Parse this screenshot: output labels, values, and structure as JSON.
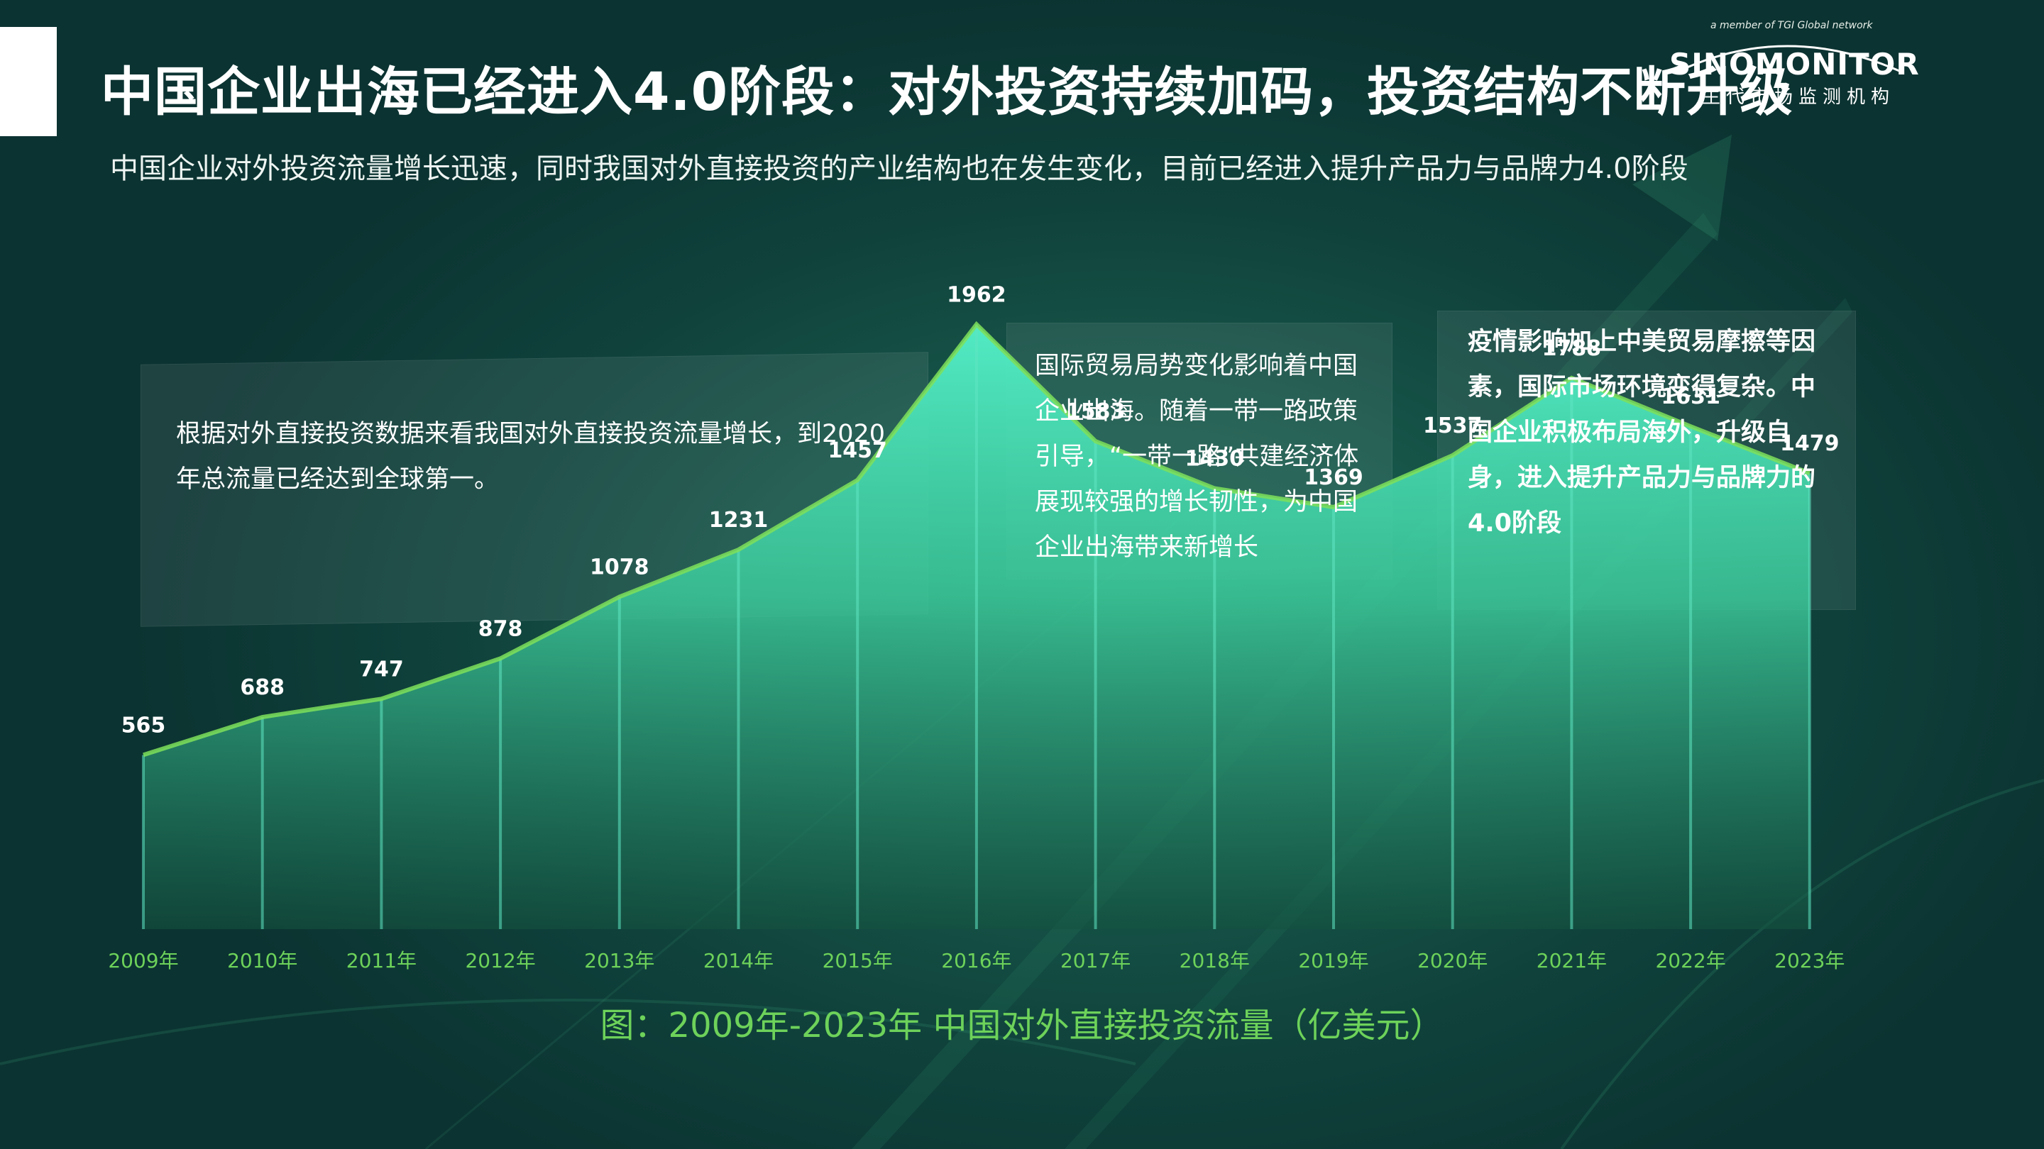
{
  "header": {
    "title": "中国企业出海已经进入4.0阶段：对外投资持续加码，投资结构不断升级",
    "subtitle": "中国企业对外投资流量增长迅速，同时我国对外直接投资的产业结构也在发生变化，目前已经进入提升产品力与品牌力4.0阶段"
  },
  "logo": {
    "tagline": "a member of TGI Global network",
    "wordmark": "SINOMONITOR",
    "chinese": "生代市场监测机构"
  },
  "annotations": [
    {
      "text": "根据对外直接投资数据来看我国对外直接投资流量增长，到2020年总流量已经达到全球第一。"
    },
    {
      "text": "国际贸易局势变化影响着中国企业出海。随着一带一路政策引导，“一带一路”共建经济体展现较强的增长韧性，为中国企业出海带来新增长"
    },
    {
      "text": "疫情影响加上中美贸易摩擦等因素，国际市场环境变得复杂。中国企业积极布局海外，升级自身，进入提升产品力与品牌力的4.0阶段"
    }
  ],
  "colors": {
    "area_top": "#4ee3c0",
    "area_bottom": "#0f4a3c",
    "line": "#7ee05a",
    "axis_label": "#6dd25a",
    "caption": "#6dd25a"
  },
  "chart_data": {
    "type": "area",
    "title": "图：2009年-2023年 中国对外直接投资流量（亿美元）",
    "categories": [
      "2009年",
      "2010年",
      "2011年",
      "2012年",
      "2013年",
      "2014年",
      "2015年",
      "2016年",
      "2017年",
      "2018年",
      "2019年",
      "2020年",
      "2021年",
      "2022年",
      "2023年"
    ],
    "series": [
      {
        "values": [
          565,
          688,
          747,
          878,
          1078,
          1231,
          1457,
          1962,
          1583,
          1430,
          1369,
          1537,
          1788,
          1631,
          1479
        ]
      }
    ],
    "ylim": [
      0,
      2600
    ],
    "grid": false,
    "legend": "none"
  }
}
